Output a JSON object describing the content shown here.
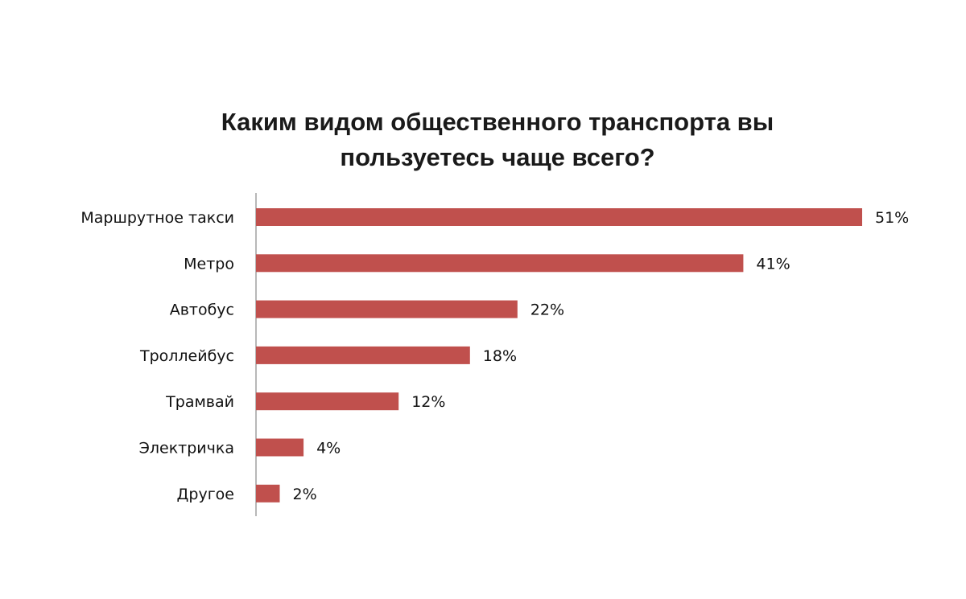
{
  "chart_data": {
    "type": "bar",
    "orientation": "horizontal",
    "title_lines": [
      "Каким видом общественного транспорта вы",
      "пользуетесь чаще всего?"
    ],
    "categories": [
      "Маршрутное такси",
      "Метро",
      "Автобус",
      "Троллейбус",
      "Трамвай",
      "Электричка",
      "Другое"
    ],
    "values": [
      51,
      41,
      22,
      18,
      12,
      4,
      2
    ],
    "value_labels": [
      "51%",
      "41%",
      "22%",
      "18%",
      "12%",
      "4%",
      "2%"
    ],
    "xlim": [
      0,
      51
    ],
    "grid": false,
    "legend": "none",
    "bar_color": "#c0504d"
  }
}
